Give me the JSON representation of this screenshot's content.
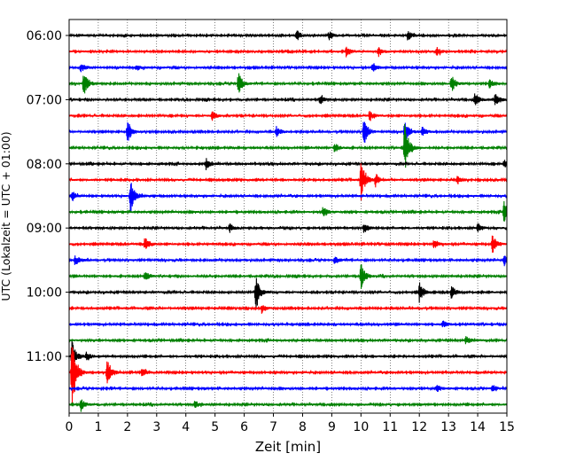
{
  "chart_data": {
    "type": "line",
    "title": "",
    "xlabel": "Zeit  [min]",
    "ylabel": "UTC (Lokalzeit = UTC + 01:00)",
    "xlim": [
      0,
      15
    ],
    "x_ticks": [
      "0",
      "1",
      "2",
      "3",
      "4",
      "5",
      "6",
      "7",
      "8",
      "9",
      "10",
      "11",
      "12",
      "13",
      "14",
      "15"
    ],
    "y_ticks": [
      "06:00",
      "07:00",
      "08:00",
      "09:00",
      "10:00",
      "11:00"
    ],
    "grid": "vertical dotted",
    "trace_interval_min": 15,
    "trace_colors": [
      "#000000",
      "#ff0000",
      "#0000ff",
      "#008000"
    ],
    "traces": [
      {
        "start": "06:00",
        "color": "#000000",
        "events": [
          {
            "t": 7.8,
            "amp": 0.35
          },
          {
            "t": 8.9,
            "amp": 0.3
          },
          {
            "t": 11.6,
            "amp": 0.3
          }
        ]
      },
      {
        "start": "06:15",
        "color": "#ff0000",
        "events": [
          {
            "t": 9.5,
            "amp": 0.35
          },
          {
            "t": 10.6,
            "amp": 0.3
          },
          {
            "t": 12.6,
            "amp": 0.25
          }
        ]
      },
      {
        "start": "06:30",
        "color": "#0000ff",
        "events": [
          {
            "t": 0.4,
            "amp": 0.3
          },
          {
            "t": 2.3,
            "amp": 0.2
          },
          {
            "t": 10.4,
            "amp": 0.25
          }
        ]
      },
      {
        "start": "06:45",
        "color": "#008000",
        "events": [
          {
            "t": 0.5,
            "amp": 0.8
          },
          {
            "t": 5.8,
            "amp": 0.75
          },
          {
            "t": 13.1,
            "amp": 0.55
          },
          {
            "t": 14.4,
            "amp": 0.3
          }
        ]
      },
      {
        "start": "07:00",
        "color": "#000000",
        "events": [
          {
            "t": 8.6,
            "amp": 0.3
          },
          {
            "t": 13.9,
            "amp": 0.45
          },
          {
            "t": 14.6,
            "amp": 0.35
          }
        ]
      },
      {
        "start": "07:15",
        "color": "#ff0000",
        "events": [
          {
            "t": 4.9,
            "amp": 0.3
          },
          {
            "t": 10.3,
            "amp": 0.35
          }
        ]
      },
      {
        "start": "07:30",
        "color": "#0000ff",
        "events": [
          {
            "t": 2.0,
            "amp": 0.7
          },
          {
            "t": 7.1,
            "amp": 0.35
          },
          {
            "t": 10.1,
            "amp": 0.85
          },
          {
            "t": 11.5,
            "amp": 0.7
          },
          {
            "t": 12.1,
            "amp": 0.3
          }
        ]
      },
      {
        "start": "07:45",
        "color": "#008000",
        "events": [
          {
            "t": 9.1,
            "amp": 0.3
          },
          {
            "t": 11.5,
            "amp": 1.6
          }
        ]
      },
      {
        "start": "08:00",
        "color": "#000000",
        "events": [
          {
            "t": 4.7,
            "amp": 0.35
          },
          {
            "t": 14.9,
            "amp": 0.3
          }
        ]
      },
      {
        "start": "08:15",
        "color": "#ff0000",
        "events": [
          {
            "t": 10.0,
            "amp": 1.3
          },
          {
            "t": 10.5,
            "amp": 0.4
          },
          {
            "t": 13.3,
            "amp": 0.3
          }
        ]
      },
      {
        "start": "08:30",
        "color": "#0000ff",
        "events": [
          {
            "t": 0.1,
            "amp": 0.35
          },
          {
            "t": 2.1,
            "amp": 1.1
          }
        ]
      },
      {
        "start": "08:45",
        "color": "#008000",
        "events": [
          {
            "t": 8.7,
            "amp": 0.35
          },
          {
            "t": 14.9,
            "amp": 0.75
          }
        ]
      },
      {
        "start": "09:00",
        "color": "#000000",
        "events": [
          {
            "t": 5.5,
            "amp": 0.3
          },
          {
            "t": 10.1,
            "amp": 0.35
          },
          {
            "t": 14.0,
            "amp": 0.3
          }
        ]
      },
      {
        "start": "09:15",
        "color": "#ff0000",
        "events": [
          {
            "t": 2.6,
            "amp": 0.5
          },
          {
            "t": 12.5,
            "amp": 0.3
          },
          {
            "t": 14.5,
            "amp": 0.65
          }
        ]
      },
      {
        "start": "09:30",
        "color": "#0000ff",
        "events": [
          {
            "t": 0.2,
            "amp": 0.35
          },
          {
            "t": 9.1,
            "amp": 0.3
          },
          {
            "t": 14.9,
            "amp": 0.4
          }
        ]
      },
      {
        "start": "09:45",
        "color": "#008000",
        "events": [
          {
            "t": 2.6,
            "amp": 0.3
          },
          {
            "t": 10.0,
            "amp": 0.8
          }
        ]
      },
      {
        "start": "10:00",
        "color": "#000000",
        "events": [
          {
            "t": 6.4,
            "amp": 1.2
          },
          {
            "t": 12.0,
            "amp": 0.65
          },
          {
            "t": 13.1,
            "amp": 0.4
          }
        ]
      },
      {
        "start": "10:15",
        "color": "#ff0000",
        "events": [
          {
            "t": 6.6,
            "amp": 0.25
          }
        ]
      },
      {
        "start": "10:30",
        "color": "#0000ff",
        "events": [
          {
            "t": 12.8,
            "amp": 0.25
          }
        ]
      },
      {
        "start": "10:45",
        "color": "#008000",
        "events": [
          {
            "t": 13.6,
            "amp": 0.25
          }
        ]
      },
      {
        "start": "11:00",
        "color": "#000000",
        "events": [
          {
            "t": 0.1,
            "amp": 1.0
          },
          {
            "t": 0.6,
            "amp": 0.3
          }
        ]
      },
      {
        "start": "11:15",
        "color": "#ff0000",
        "events": [
          {
            "t": 0.1,
            "amp": 2.6
          },
          {
            "t": 1.3,
            "amp": 1.0
          },
          {
            "t": 2.5,
            "amp": 0.3
          }
        ]
      },
      {
        "start": "11:30",
        "color": "#0000ff",
        "events": [
          {
            "t": 12.6,
            "amp": 0.25
          },
          {
            "t": 14.5,
            "amp": 0.25
          }
        ]
      },
      {
        "start": "11:45",
        "color": "#008000",
        "events": [
          {
            "t": 0.4,
            "amp": 0.35
          },
          {
            "t": 4.3,
            "amp": 0.25
          }
        ]
      }
    ]
  }
}
